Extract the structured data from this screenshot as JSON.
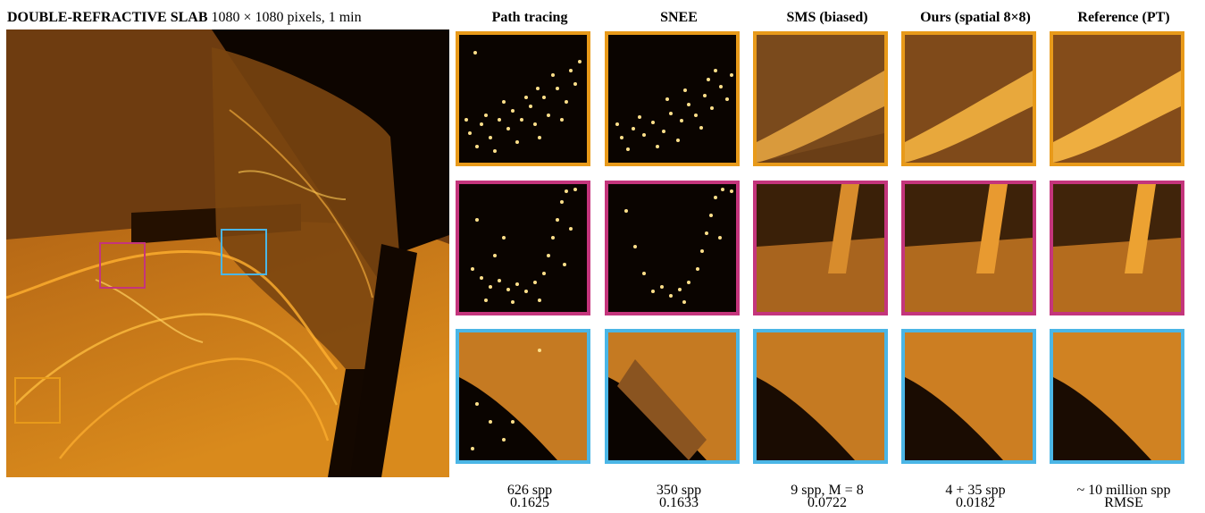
{
  "title": {
    "scene": "DOUBLE-REFRACTIVE SLAB",
    "info": "1080 × 1080 pixels, 1 min"
  },
  "columns": [
    {
      "label": "Path tracing",
      "spp": "626 spp",
      "rmse": "0.1625"
    },
    {
      "label": "SNEE",
      "spp": "350 spp",
      "rmse": "0.1633"
    },
    {
      "label": "SMS (biased)",
      "spp": "9 spp, M = 8",
      "rmse": "0.0722"
    },
    {
      "label": "Ours (spatial 8×8)",
      "spp": "4 + 35 spp",
      "rmse": "0.0182"
    },
    {
      "label": "Reference (PT)",
      "spp": "~ 10 million spp",
      "rmse": "RMSE"
    }
  ],
  "colors": {
    "orange": "#e89a1a",
    "magenta": "#c4357c",
    "cyan": "#4bb6e6"
  }
}
